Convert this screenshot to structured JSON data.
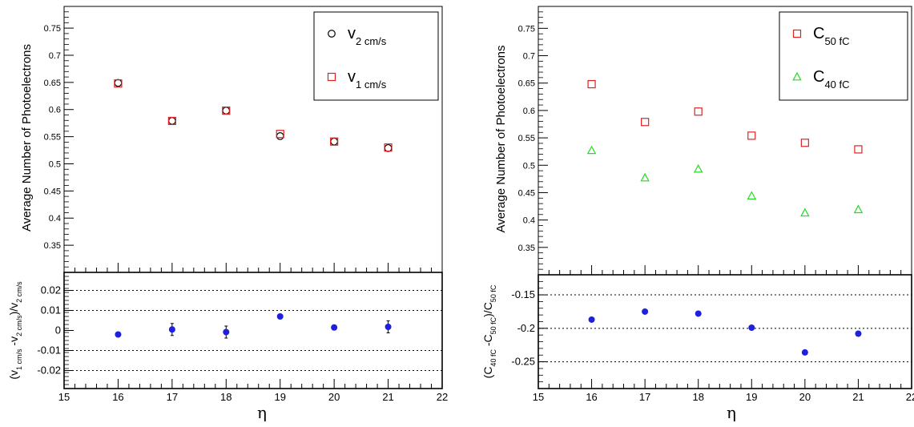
{
  "chart_data": [
    {
      "type": "scatter",
      "xlabel": "η",
      "ylabel": "Average Number of Photoelectrons",
      "xlim": [
        15,
        22
      ],
      "ylim": [
        0.3,
        0.79
      ],
      "x_ticks": [
        15,
        16,
        17,
        18,
        19,
        20,
        21,
        22
      ],
      "y_ticks": [
        0.35,
        0.4,
        0.45,
        0.5,
        0.55,
        0.6,
        0.65,
        0.7,
        0.75
      ],
      "legend_position": "top-right",
      "series": [
        {
          "legend_main": "v",
          "legend_sub": "2 cm/s",
          "marker": "open-circle",
          "color": "#000000",
          "x": [
            16,
            17,
            18,
            19,
            20,
            21
          ],
          "y": [
            0.649,
            0.579,
            0.598,
            0.551,
            0.541,
            0.529
          ]
        },
        {
          "legend_main": "v",
          "legend_sub": "1 cm/s",
          "marker": "open-square",
          "color": "#dd2222",
          "x": [
            16,
            17,
            18,
            19,
            20,
            21
          ],
          "y": [
            0.648,
            0.579,
            0.598,
            0.555,
            0.541,
            0.53
          ]
        }
      ],
      "ratio": {
        "ylabel_parts": [
          "(v",
          "1 cm/s",
          " -v",
          "2 cm/s",
          ")/v",
          "2 cm/s"
        ],
        "ylim": [
          -0.029,
          0.029
        ],
        "y_ticks": [
          -0.02,
          -0.01,
          0,
          0.01,
          0.02
        ],
        "gridlines": [
          -0.02,
          -0.01,
          0.01,
          0.02
        ],
        "color": "#1f1fe0",
        "x": [
          16,
          17,
          18,
          19,
          20,
          21
        ],
        "y": [
          -0.002,
          0.0005,
          -0.0008,
          0.007,
          0.0015,
          0.0018
        ],
        "err": [
          0.0012,
          0.003,
          0.003,
          0.0012,
          0.0012,
          0.003
        ]
      }
    },
    {
      "type": "scatter",
      "xlabel": "η",
      "ylabel": "Average Number of Photoelectrons",
      "xlim": [
        15,
        22
      ],
      "ylim": [
        0.3,
        0.79
      ],
      "x_ticks": [
        15,
        16,
        17,
        18,
        19,
        20,
        21,
        22
      ],
      "y_ticks": [
        0.35,
        0.4,
        0.45,
        0.5,
        0.55,
        0.6,
        0.65,
        0.7,
        0.75
      ],
      "legend_position": "top-right",
      "series": [
        {
          "legend_main": "C",
          "legend_sub": "50 fC",
          "marker": "open-square",
          "color": "#dd2222",
          "x": [
            16,
            17,
            18,
            19,
            20,
            21
          ],
          "y": [
            0.648,
            0.579,
            0.598,
            0.554,
            0.541,
            0.529
          ]
        },
        {
          "legend_main": "C",
          "legend_sub": "40 fC",
          "marker": "open-triangle",
          "color": "#22dd22",
          "x": [
            16,
            17,
            18,
            19,
            20,
            21
          ],
          "y": [
            0.527,
            0.477,
            0.493,
            0.444,
            0.413,
            0.419
          ]
        }
      ],
      "ratio": {
        "ylabel_parts": [
          "(C",
          "40 fC",
          " -C",
          "50 fC",
          ")/C",
          "50 fC"
        ],
        "ylim": [
          -0.29,
          -0.12
        ],
        "y_ticks": [
          -0.25,
          -0.2,
          -0.15
        ],
        "gridlines": [
          -0.25,
          -0.2,
          -0.15
        ],
        "color": "#1f1fe0",
        "x": [
          16,
          17,
          18,
          19,
          20,
          21
        ],
        "y": [
          -0.187,
          -0.175,
          -0.178,
          -0.199,
          -0.236,
          -0.208
        ],
        "err": [
          0,
          0,
          0,
          0,
          0,
          0
        ]
      }
    }
  ]
}
